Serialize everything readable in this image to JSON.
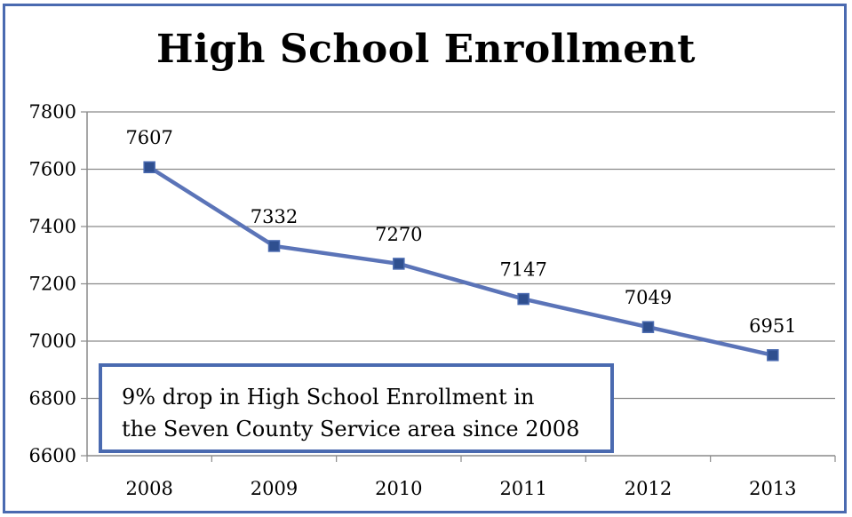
{
  "chart_data": {
    "type": "line",
    "title": "High School Enrollment",
    "xlabel": "",
    "ylabel": "",
    "categories": [
      "2008",
      "2009",
      "2010",
      "2011",
      "2012",
      "2013"
    ],
    "series": [
      {
        "values": [
          7607,
          7332,
          7270,
          7147,
          7049,
          6951
        ],
        "color": "#5b74b8",
        "marker": "square",
        "marker_color": "#2f4f8f"
      }
    ],
    "data_labels": [
      "7607",
      "7332",
      "7270",
      "7147",
      "7049",
      "6951"
    ],
    "ylim": [
      6600,
      7800
    ],
    "yticks": [
      6600,
      6800,
      7000,
      7200,
      7400,
      7600,
      7800
    ],
    "ytick_labels": [
      "6600",
      "6800",
      "7000",
      "7200",
      "7400",
      "7600",
      "7800"
    ],
    "grid": true,
    "gridline_color": "#8a8a8a",
    "annotation": {
      "line1": "9% drop in High School Enrollment in",
      "line2": "the Seven County Service area since 2008",
      "border_color": "#4a6ab0"
    }
  }
}
